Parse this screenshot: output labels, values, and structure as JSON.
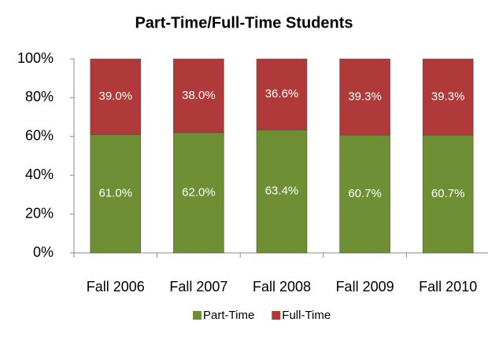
{
  "chart_data": {
    "type": "stacked_bar_percent",
    "title": "Part-Time/Full-Time Students",
    "categories": [
      "Fall 2006",
      "Fall 2007",
      "Fall 2008",
      "Fall 2009",
      "Fall 2010"
    ],
    "series": [
      {
        "name": "Part-Time",
        "color": "#6f8f35",
        "values": [
          61.0,
          62.0,
          63.4,
          60.7,
          60.7
        ],
        "value_labels": [
          "61.0%",
          "62.0%",
          "63.4%",
          "60.7%",
          "60.7%"
        ]
      },
      {
        "name": "Full-Time",
        "color": "#b03a3a",
        "values": [
          39.0,
          38.0,
          36.6,
          39.3,
          39.3
        ],
        "value_labels": [
          "39.0%",
          "38.0%",
          "36.6%",
          "39.3%",
          "39.3%"
        ]
      }
    ],
    "ylim": [
      0,
      100
    ],
    "yticks": [
      {
        "value": 0,
        "label": "0%"
      },
      {
        "value": 20,
        "label": "20%"
      },
      {
        "value": 40,
        "label": "40%"
      },
      {
        "value": 60,
        "label": "60%"
      },
      {
        "value": 80,
        "label": "80%"
      },
      {
        "value": 100,
        "label": "100%"
      }
    ],
    "legend": "bottom"
  }
}
